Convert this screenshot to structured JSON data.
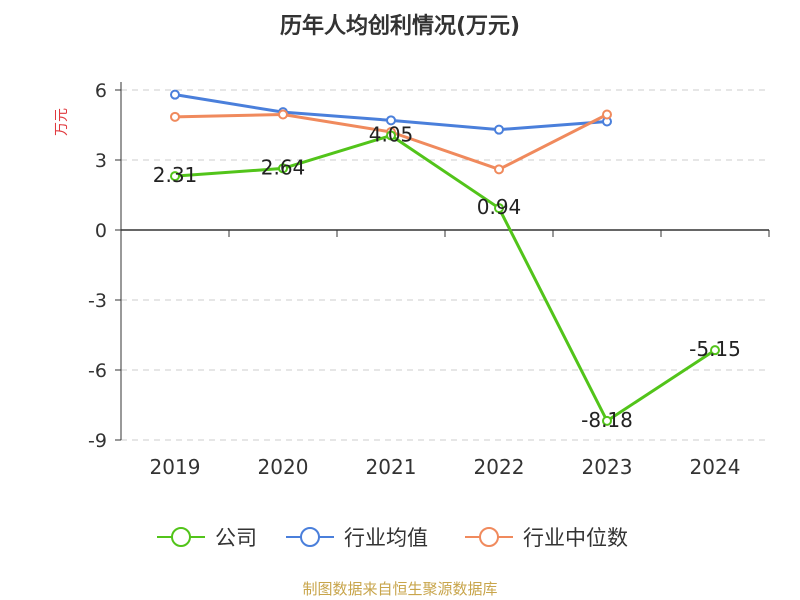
{
  "chart_data": {
    "type": "line",
    "title": "历年人均创利情况(万元)",
    "ylabel": "万元",
    "categories": [
      "2019",
      "2020",
      "2021",
      "2022",
      "2023",
      "2024"
    ],
    "ylim": [
      -9,
      6
    ],
    "yticks": [
      6,
      3,
      0,
      -3,
      -6,
      -9
    ],
    "grid": true,
    "legend_position": "bottom",
    "series": [
      {
        "name": "公司",
        "color": "#52c41a",
        "values": [
          2.31,
          2.64,
          4.05,
          0.94,
          -8.18,
          -5.15
        ],
        "labels": [
          "2.31",
          "2.64",
          "4.05",
          "0.94",
          "-8.18",
          "-5.15"
        ]
      },
      {
        "name": "行业均值",
        "color": "#4a7fdb",
        "values": [
          5.8,
          5.05,
          4.7,
          4.3,
          4.65,
          null
        ]
      },
      {
        "name": "行业中位数",
        "color": "#f08a5d",
        "values": [
          4.85,
          4.95,
          4.2,
          2.6,
          4.95,
          null
        ]
      }
    ]
  },
  "source": "制图数据来自恒生聚源数据库",
  "colors": {
    "title": "#333333",
    "ylabel": "#e0393e",
    "axis": "#333333",
    "grid": "#cccccc",
    "source": "#c8a54b"
  }
}
